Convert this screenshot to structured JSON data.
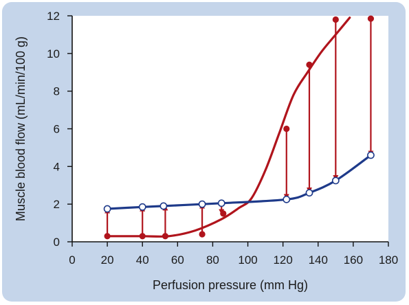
{
  "chart_data": {
    "type": "line",
    "xlabel": "Perfusion pressure (mm Hg)",
    "ylabel": "Muscle blood flow (mL/min/100 g)",
    "xlim": [
      0,
      180
    ],
    "ylim": [
      0,
      12
    ],
    "xticks": [
      "0",
      "20",
      "40",
      "60",
      "80",
      "100",
      "120",
      "140",
      "160",
      "180"
    ],
    "yticks": [
      "0",
      "2",
      "4",
      "6",
      "8",
      "10",
      "12"
    ],
    "grid": false,
    "colors": {
      "blue": "#1e3a8a",
      "red": "#b0141c",
      "frame": "#c5d5ea"
    },
    "blue_curve": {
      "marker": "open-circle",
      "points": [
        [
          20,
          1.75
        ],
        [
          40,
          1.85
        ],
        [
          52,
          1.9
        ],
        [
          74,
          2.0
        ],
        [
          85,
          2.05
        ],
        [
          122,
          2.25
        ],
        [
          135,
          2.6
        ],
        [
          150,
          3.25
        ],
        [
          170,
          4.6
        ]
      ]
    },
    "red_curve": [
      [
        20,
        0.3
      ],
      [
        40,
        0.3
      ],
      [
        55,
        0.3
      ],
      [
        70,
        0.6
      ],
      [
        85,
        1.2
      ],
      [
        95,
        1.8
      ],
      [
        102,
        2.3
      ],
      [
        110,
        3.8
      ],
      [
        118,
        5.8
      ],
      [
        126,
        7.8
      ],
      [
        134,
        9.0
      ],
      [
        142,
        10.1
      ],
      [
        150,
        11.0
      ],
      [
        158,
        11.9
      ]
    ],
    "red_points": {
      "marker": "filled-circle",
      "points": [
        [
          20,
          0.3
        ],
        [
          40,
          0.3
        ],
        [
          53,
          0.3
        ],
        [
          74,
          0.4
        ],
        [
          86,
          1.5
        ],
        [
          122,
          6.0
        ],
        [
          135,
          9.4
        ],
        [
          150,
          11.8
        ],
        [
          170,
          11.85
        ]
      ]
    },
    "arrows": [
      {
        "x": 20,
        "from": 0.3,
        "to": 1.75
      },
      {
        "x": 40,
        "from": 0.3,
        "to": 1.85
      },
      {
        "x": 53,
        "from": 0.3,
        "to": 1.9
      },
      {
        "x": 74,
        "from": 0.4,
        "to": 2.0
      },
      {
        "x": 85,
        "from": 2.05,
        "to": 1.5
      },
      {
        "x": 122,
        "from": 6.0,
        "to": 2.3
      },
      {
        "x": 135,
        "from": 9.4,
        "to": 2.65
      },
      {
        "x": 150,
        "from": 11.8,
        "to": 3.3
      },
      {
        "x": 170,
        "from": 11.85,
        "to": 4.6
      }
    ]
  }
}
